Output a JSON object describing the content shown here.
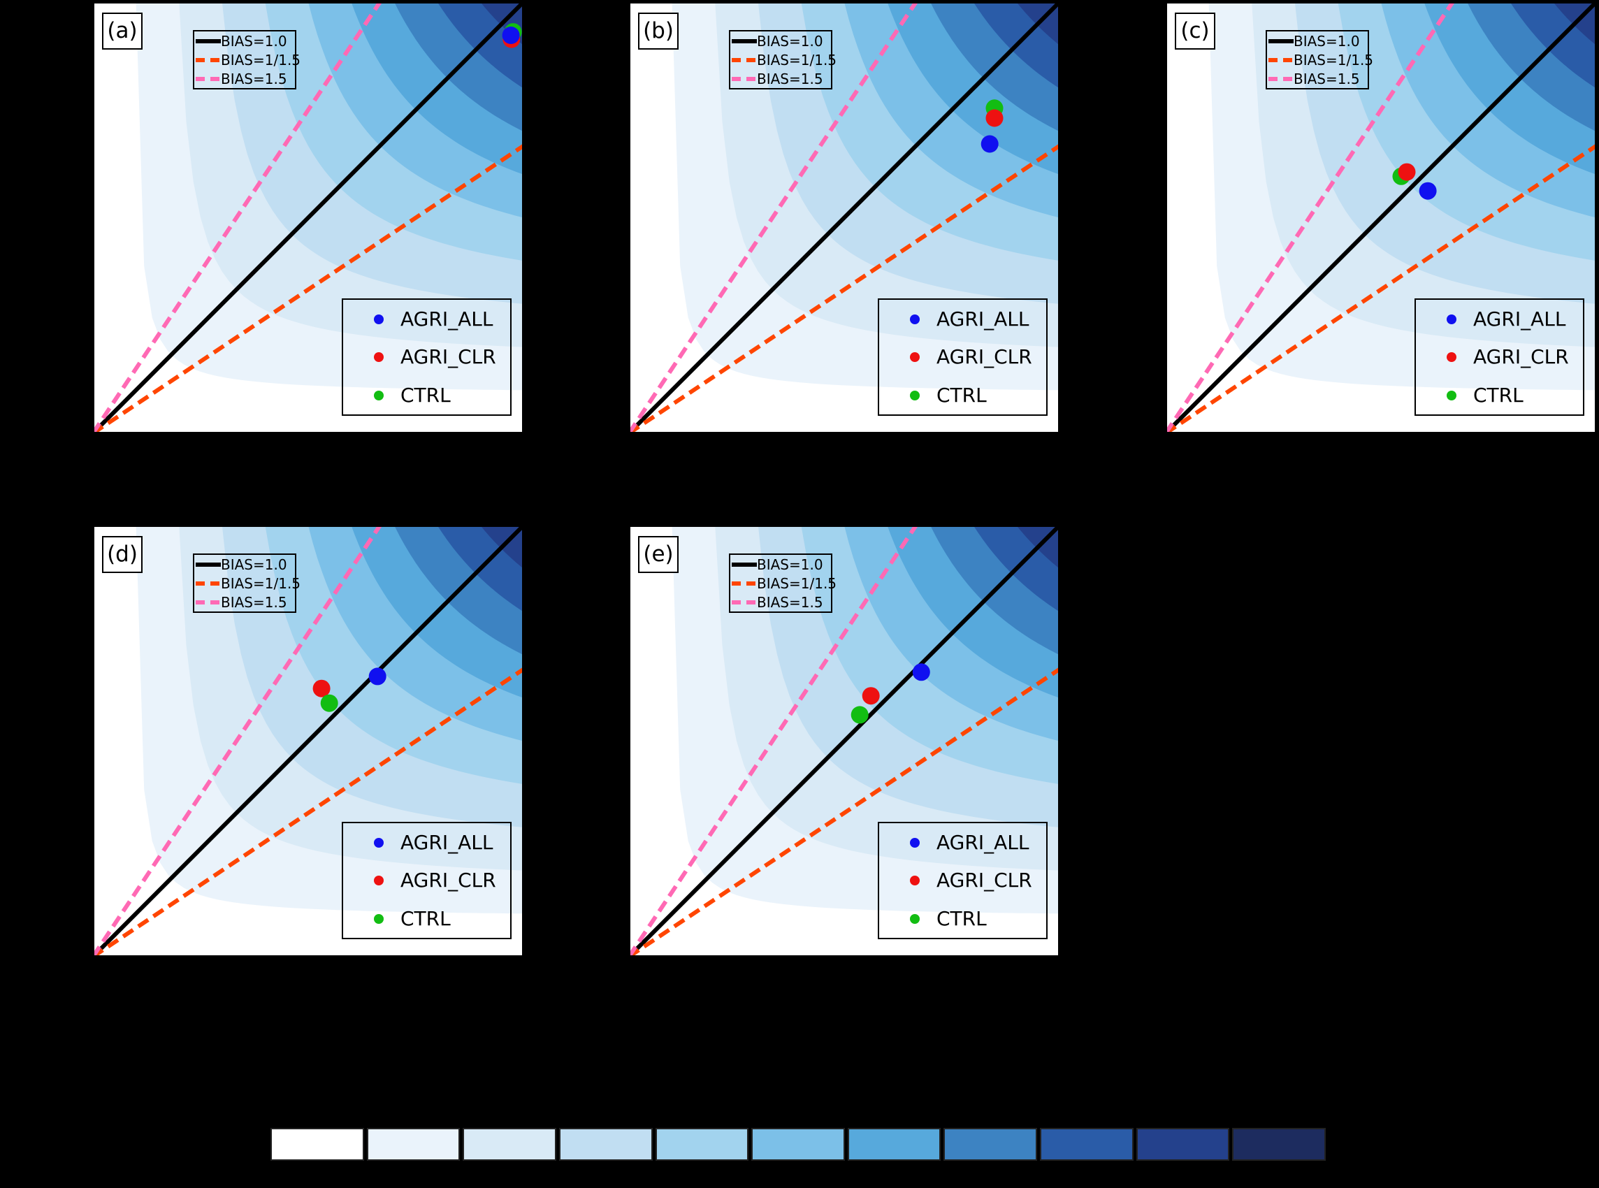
{
  "figure": {
    "background_color": "#000000",
    "note": "five-panel performance diagram figure with CSI shading and shared colorbar"
  },
  "chart_data": {
    "type": "scatter",
    "subtype": "performance-diagram",
    "grid": false,
    "xlim": [
      0,
      1
    ],
    "ylim": [
      0,
      1
    ],
    "csi_shading": {
      "band_step": 0.1,
      "band_levels": [
        0,
        0.1,
        0.2,
        0.3,
        0.4,
        0.5,
        0.6,
        0.7,
        0.8,
        0.9,
        1.0
      ],
      "colors": [
        "#ffffff",
        "#eaf3fb",
        "#d9eaf6",
        "#c1def2",
        "#a2d3ee",
        "#7cc0e8",
        "#57a9dc",
        "#3d83c2",
        "#2a5ca8",
        "#24418c",
        "#1d2c5f"
      ]
    },
    "bias_lines": [
      {
        "label": "BIAS=1.0",
        "slope": 1.0,
        "color": "#000000",
        "style": "solid"
      },
      {
        "label": "BIAS=1/1.5",
        "slope": 0.66667,
        "color": "#ff4500",
        "style": "dashed"
      },
      {
        "label": "BIAS=1.5",
        "slope": 1.5,
        "color": "#ff69b4",
        "style": "dashed"
      }
    ],
    "panels": [
      {
        "label": "(a)",
        "points": [
          {
            "name": "CTRL",
            "x": 0.976,
            "y": 0.931
          },
          {
            "name": "AGRI_CLR",
            "x": 0.972,
            "y": 0.914
          },
          {
            "name": "AGRI_ALL",
            "x": 0.971,
            "y": 0.923
          }
        ]
      },
      {
        "label": "(b)",
        "points": [
          {
            "name": "CTRL",
            "x": 0.849,
            "y": 0.754
          },
          {
            "name": "AGRI_CLR",
            "x": 0.849,
            "y": 0.731
          },
          {
            "name": "AGRI_ALL",
            "x": 0.838,
            "y": 0.671
          }
        ]
      },
      {
        "label": "(c)",
        "points": [
          {
            "name": "CTRL",
            "x": 0.547,
            "y": 0.596
          },
          {
            "name": "AGRI_CLR",
            "x": 0.56,
            "y": 0.606
          },
          {
            "name": "AGRI_ALL",
            "x": 0.609,
            "y": 0.562
          }
        ]
      },
      {
        "label": "(d)",
        "points": [
          {
            "name": "AGRI_CLR",
            "x": 0.531,
            "y": 0.622
          },
          {
            "name": "CTRL",
            "x": 0.549,
            "y": 0.588
          },
          {
            "name": "AGRI_ALL",
            "x": 0.661,
            "y": 0.65
          }
        ]
      },
      {
        "label": "(e)",
        "points": [
          {
            "name": "CTRL",
            "x": 0.536,
            "y": 0.561
          },
          {
            "name": "AGRI_CLR",
            "x": 0.562,
            "y": 0.605
          },
          {
            "name": "AGRI_ALL",
            "x": 0.679,
            "y": 0.66
          }
        ]
      }
    ],
    "colorbar": {
      "orientation": "horizontal",
      "cells": 11,
      "colors": [
        "#ffffff",
        "#eaf3fb",
        "#d9eaf6",
        "#c1def2",
        "#a2d3ee",
        "#7cc0e8",
        "#57a9dc",
        "#3d83c2",
        "#2a5ca8",
        "#24418c",
        "#1d2c5f"
      ]
    }
  },
  "legends": {
    "bias": {
      "entries": [
        {
          "label": "BIAS=1.0",
          "color": "#000000",
          "style": "solid"
        },
        {
          "label": "BIAS=1/1.5",
          "color": "#ff4500",
          "style": "dashed"
        },
        {
          "label": "BIAS=1.5",
          "color": "#ff69b4",
          "style": "dashed"
        }
      ]
    },
    "points": {
      "entries": [
        {
          "label": "AGRI_ALL",
          "color": "#1010f0"
        },
        {
          "label": "AGRI_CLR",
          "color": "#ee1111"
        },
        {
          "label": "CTRL",
          "color": "#12bd12"
        }
      ]
    }
  }
}
